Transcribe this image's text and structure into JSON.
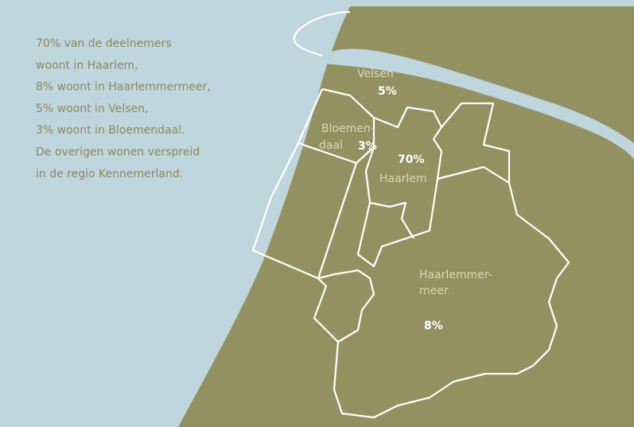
{
  "intro": [
    "70% van de deelnemers",
    "woont in Haarlem,",
    "8% woont in Haarlemmermeer,",
    "5% woont in Velsen,",
    "3% woont in Bloemendaal.",
    "De overigen wonen verspreid",
    "in de regio Kennemerland."
  ],
  "regions": [
    {
      "name": [
        "Velsen"
      ],
      "pct": "5%"
    },
    {
      "name": [
        "Bloemen-",
        "daal"
      ],
      "pct": "3%"
    },
    {
      "name": [
        "Haarlem"
      ],
      "pct": "70%"
    },
    {
      "name": [
        "Haarlemmer-",
        "meer"
      ],
      "pct": "8%"
    }
  ]
}
